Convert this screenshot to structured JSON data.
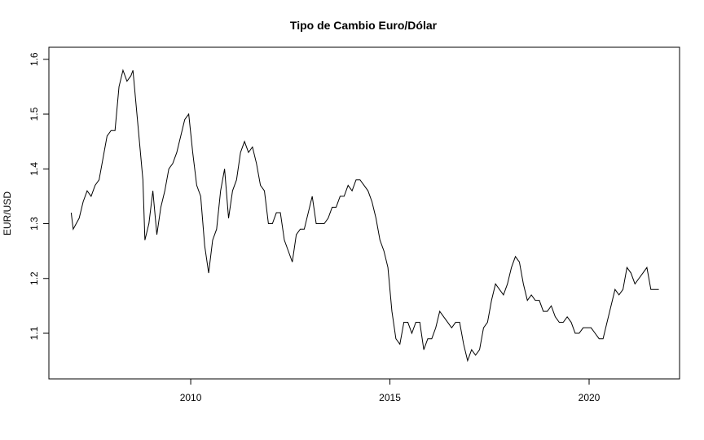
{
  "chart_data": {
    "type": "line",
    "title": "Tipo de Cambio Euro/Dólar",
    "y_label": "EUR/USD",
    "color": "#000000",
    "x": [
      2007.0,
      2007.05,
      2007.2,
      2007.3,
      2007.4,
      2007.5,
      2007.6,
      2007.7,
      2007.8,
      2007.9,
      2008.0,
      2008.1,
      2008.2,
      2008.3,
      2008.4,
      2008.5,
      2008.55,
      2008.7,
      2008.8,
      2008.85,
      2008.95,
      2009.05,
      2009.15,
      2009.25,
      2009.35,
      2009.45,
      2009.55,
      2009.65,
      2009.75,
      2009.85,
      2009.95,
      2010.05,
      2010.15,
      2010.25,
      2010.35,
      2010.45,
      2010.55,
      2010.65,
      2010.75,
      2010.85,
      2010.95,
      2011.05,
      2011.15,
      2011.25,
      2011.35,
      2011.45,
      2011.55,
      2011.65,
      2011.75,
      2011.85,
      2011.95,
      2012.05,
      2012.15,
      2012.25,
      2012.35,
      2012.45,
      2012.55,
      2012.65,
      2012.75,
      2012.85,
      2012.95,
      2013.05,
      2013.15,
      2013.25,
      2013.35,
      2013.45,
      2013.55,
      2013.65,
      2013.75,
      2013.85,
      2013.95,
      2014.05,
      2014.15,
      2014.25,
      2014.35,
      2014.45,
      2014.55,
      2014.65,
      2014.75,
      2014.85,
      2014.95,
      2015.05,
      2015.15,
      2015.25,
      2015.35,
      2015.45,
      2015.55,
      2015.65,
      2015.75,
      2015.85,
      2015.95,
      2016.05,
      2016.15,
      2016.25,
      2016.35,
      2016.45,
      2016.55,
      2016.65,
      2016.75,
      2016.85,
      2016.95,
      2017.05,
      2017.15,
      2017.25,
      2017.35,
      2017.45,
      2017.55,
      2017.65,
      2017.75,
      2017.85,
      2017.95,
      2018.05,
      2018.15,
      2018.25,
      2018.35,
      2018.45,
      2018.55,
      2018.65,
      2018.75,
      2018.85,
      2018.95,
      2019.05,
      2019.15,
      2019.25,
      2019.35,
      2019.45,
      2019.55,
      2019.65,
      2019.75,
      2019.85,
      2019.95,
      2020.05,
      2020.15,
      2020.25,
      2020.35,
      2020.45,
      2020.55,
      2020.65,
      2020.75,
      2020.85,
      2020.95,
      2021.05,
      2021.15,
      2021.25,
      2021.35,
      2021.45,
      2021.55,
      2021.65,
      2021.75
    ],
    "values": [
      1.32,
      1.29,
      1.31,
      1.34,
      1.36,
      1.35,
      1.37,
      1.38,
      1.42,
      1.46,
      1.47,
      1.47,
      1.55,
      1.58,
      1.56,
      1.57,
      1.58,
      1.46,
      1.38,
      1.27,
      1.3,
      1.36,
      1.28,
      1.33,
      1.36,
      1.4,
      1.41,
      1.43,
      1.46,
      1.49,
      1.5,
      1.43,
      1.37,
      1.35,
      1.26,
      1.21,
      1.27,
      1.29,
      1.36,
      1.4,
      1.31,
      1.36,
      1.38,
      1.43,
      1.45,
      1.43,
      1.44,
      1.41,
      1.37,
      1.36,
      1.3,
      1.3,
      1.32,
      1.32,
      1.27,
      1.25,
      1.23,
      1.28,
      1.29,
      1.29,
      1.32,
      1.35,
      1.3,
      1.3,
      1.3,
      1.31,
      1.33,
      1.33,
      1.35,
      1.35,
      1.37,
      1.36,
      1.38,
      1.38,
      1.37,
      1.36,
      1.34,
      1.31,
      1.27,
      1.25,
      1.22,
      1.14,
      1.09,
      1.08,
      1.12,
      1.12,
      1.1,
      1.12,
      1.12,
      1.07,
      1.09,
      1.09,
      1.11,
      1.14,
      1.13,
      1.12,
      1.11,
      1.12,
      1.12,
      1.08,
      1.05,
      1.07,
      1.06,
      1.07,
      1.11,
      1.12,
      1.16,
      1.19,
      1.18,
      1.17,
      1.19,
      1.22,
      1.24,
      1.23,
      1.19,
      1.16,
      1.17,
      1.16,
      1.16,
      1.14,
      1.14,
      1.15,
      1.13,
      1.12,
      1.12,
      1.13,
      1.12,
      1.1,
      1.1,
      1.11,
      1.11,
      1.11,
      1.1,
      1.09,
      1.09,
      1.12,
      1.15,
      1.18,
      1.17,
      1.18,
      1.22,
      1.21,
      1.19,
      1.2,
      1.21,
      1.22,
      1.18,
      1.18,
      1.18
    ],
    "xlim": [
      2006.44,
      2022.27
    ],
    "ylim": [
      1.0167,
      1.622
    ],
    "xticks": [
      2010,
      2015,
      2020
    ],
    "yticks": [
      1.1,
      1.2,
      1.3,
      1.4,
      1.5,
      1.6
    ],
    "grid": false
  }
}
